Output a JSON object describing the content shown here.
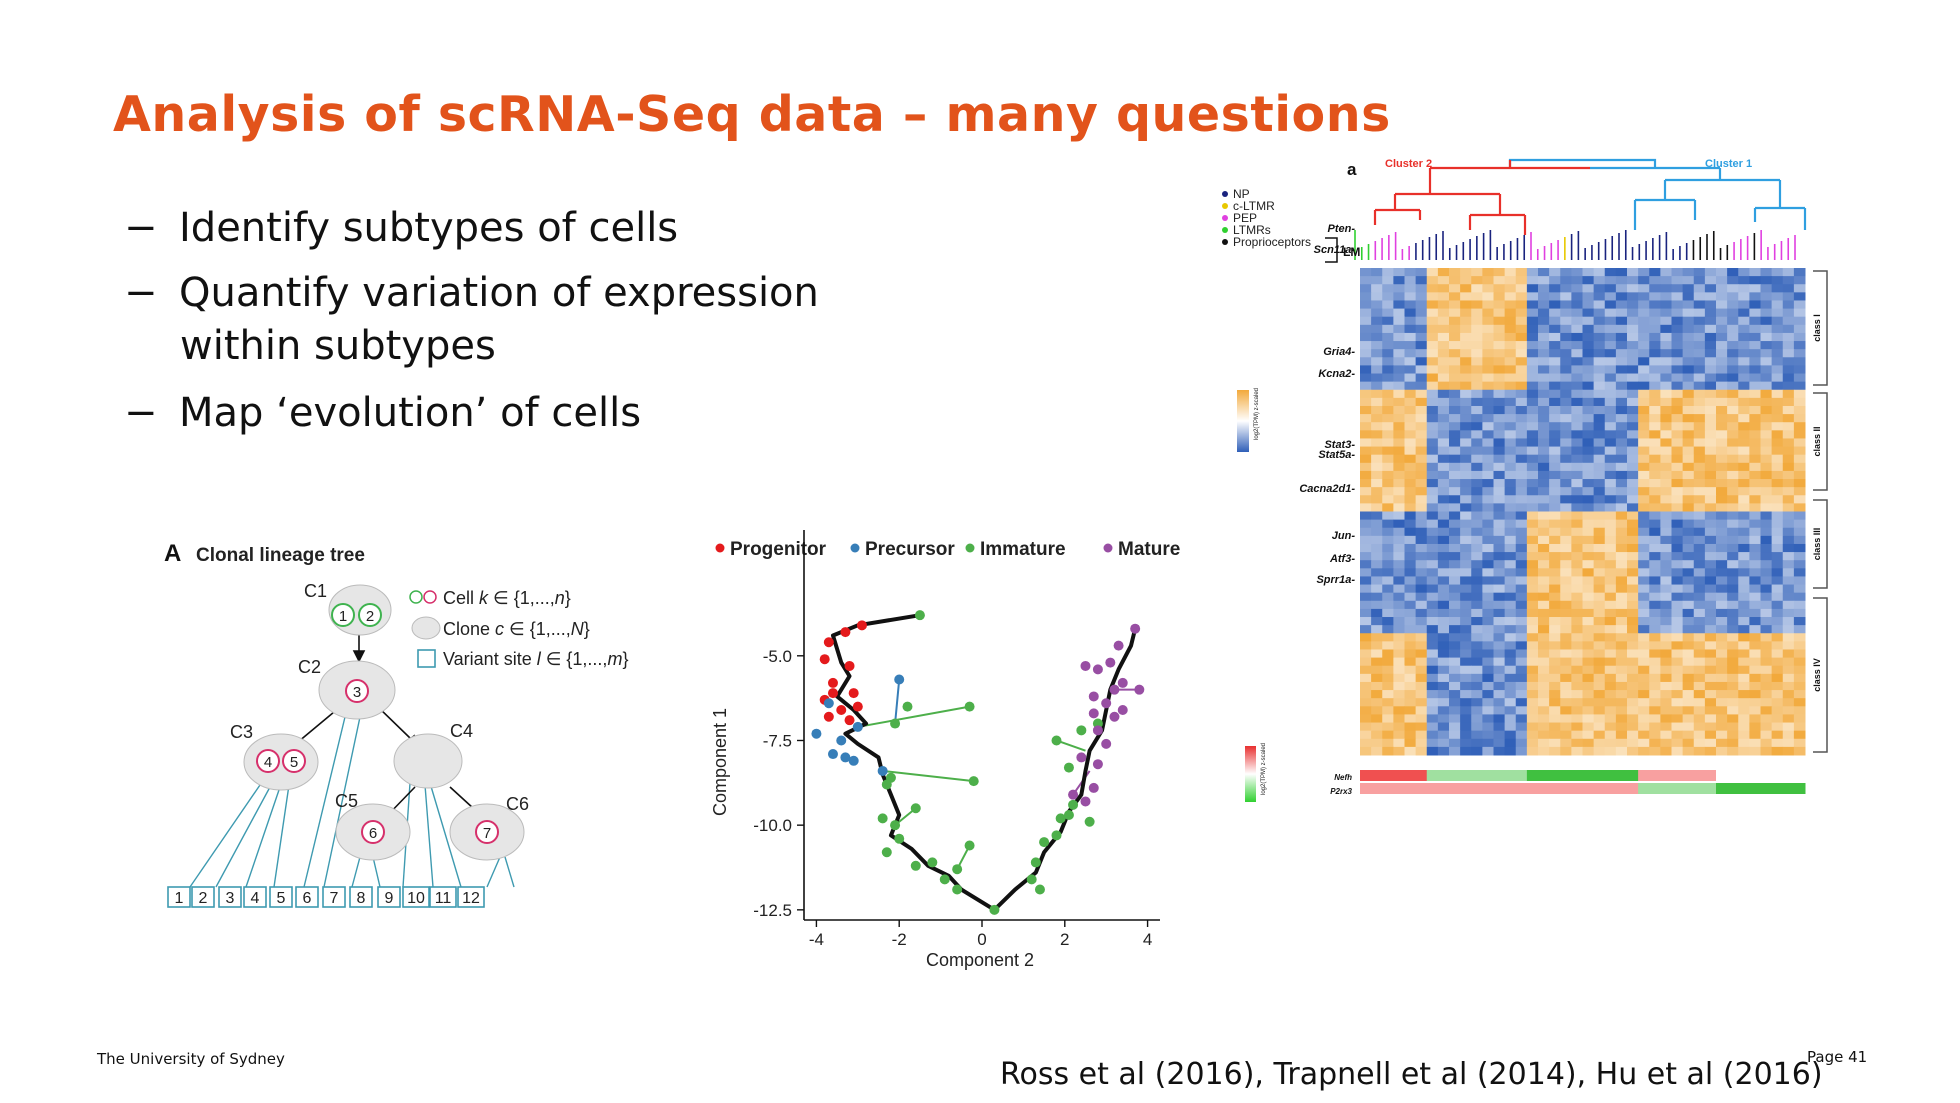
{
  "slide": {
    "title": "Analysis of scRNA-Seq data – many questions",
    "bullets": [
      {
        "dash": "−",
        "lines": [
          "Identify subtypes of cells"
        ]
      },
      {
        "dash": "−",
        "lines": [
          "Quantify variation of expression",
          "within subtypes"
        ]
      },
      {
        "dash": "−",
        "lines": [
          "Map ‘evolution’ of cells"
        ]
      }
    ],
    "footer_left": "The University of Sydney",
    "footer_right": "Page 41",
    "citation": "Ross et al (2016), Trapnell et al (2014), Hu et al (2016)"
  },
  "lineage_tree": {
    "panel_letter": "A",
    "title": "Clonal lineage tree",
    "clones": [
      "C1",
      "C2",
      "C3",
      "C4",
      "C5",
      "C6"
    ],
    "cells": [
      "1",
      "2",
      "3",
      "4",
      "5",
      "6",
      "7"
    ],
    "legend": [
      {
        "prefix": "Cell ",
        "var": "k",
        "suffix": " ∈ {1,...,",
        "var2": "n",
        "end": "}"
      },
      {
        "prefix": "Clone ",
        "var": "c",
        "suffix": " ∈ {1,...,",
        "var2": "N",
        "end": "}"
      },
      {
        "prefix": "Variant site ",
        "var": "l",
        "suffix": " ∈ {1,...,",
        "var2": "m",
        "end": "}"
      }
    ],
    "sites": [
      "1",
      "2",
      "3",
      "4",
      "5",
      "6",
      "7",
      "8",
      "9",
      "10",
      "11",
      "12"
    ],
    "colors": {
      "cell": "#D6306B",
      "cell_alt": "#3FB34F",
      "clone_fill": "#E6E6E6",
      "site": "#3E9AB0"
    }
  },
  "chart_data": {
    "type": "scatter",
    "xlabel": "Component 2",
    "ylabel": "Component 1",
    "xlim": [
      -4.3,
      4.3
    ],
    "ylim": [
      -12.8,
      -3.5
    ],
    "xticks": [
      -4,
      -2,
      0,
      2,
      4
    ],
    "yticks": [
      -5.0,
      -7.5,
      -10.0,
      -12.5
    ],
    "xtick_labels": [
      "-4",
      "-2",
      "0",
      "2",
      "4"
    ],
    "ytick_labels": [
      "-5.0",
      "-7.5",
      "-10.0",
      "-12.5"
    ],
    "legend_position": "top",
    "trajectory": [
      [
        -1.5,
        -3.8
      ],
      [
        -3.0,
        -4.1
      ],
      [
        -3.6,
        -4.4
      ],
      [
        -3.4,
        -5.2
      ],
      [
        -3.2,
        -5.6
      ],
      [
        -3.5,
        -6.2
      ],
      [
        -3.1,
        -6.6
      ],
      [
        -2.8,
        -7.0
      ],
      [
        -3.3,
        -7.3
      ],
      [
        -3.0,
        -7.6
      ],
      [
        -2.5,
        -8.0
      ],
      [
        -2.4,
        -8.5
      ],
      [
        -2.2,
        -9.1
      ],
      [
        -2.0,
        -9.7
      ],
      [
        -2.2,
        -10.3
      ],
      [
        -1.7,
        -10.7
      ],
      [
        -1.3,
        -11.2
      ],
      [
        -0.8,
        -11.5
      ],
      [
        -0.5,
        -11.9
      ],
      [
        0.3,
        -12.5
      ],
      [
        0.8,
        -11.9
      ],
      [
        1.3,
        -11.4
      ],
      [
        1.5,
        -10.8
      ],
      [
        1.9,
        -10.2
      ],
      [
        2.1,
        -9.6
      ],
      [
        2.4,
        -9.1
      ],
      [
        2.5,
        -8.4
      ],
      [
        2.6,
        -7.8
      ],
      [
        2.9,
        -7.2
      ],
      [
        3.0,
        -6.6
      ],
      [
        3.1,
        -6.0
      ],
      [
        3.3,
        -5.4
      ],
      [
        3.6,
        -4.7
      ],
      [
        3.7,
        -4.2
      ]
    ],
    "series": [
      {
        "name": "Progenitor",
        "color": "#E41A1C",
        "points": [
          [
            -3.7,
            -4.6
          ],
          [
            -3.3,
            -4.3
          ],
          [
            -2.9,
            -4.1
          ],
          [
            -3.8,
            -5.1
          ],
          [
            -3.2,
            -5.3
          ],
          [
            -3.6,
            -5.8
          ],
          [
            -3.1,
            -6.1
          ],
          [
            -3.8,
            -6.3
          ],
          [
            -3.4,
            -6.6
          ],
          [
            -3.2,
            -6.9
          ],
          [
            -3.7,
            -6.8
          ],
          [
            -3.6,
            -6.1
          ],
          [
            -3.0,
            -6.5
          ]
        ]
      },
      {
        "name": "Precursor",
        "color": "#377EB8",
        "points": [
          [
            -4.0,
            -7.3
          ],
          [
            -3.7,
            -6.4
          ],
          [
            -3.4,
            -7.5
          ],
          [
            -3.3,
            -8.0
          ],
          [
            -3.1,
            -8.1
          ],
          [
            -2.4,
            -8.4
          ],
          [
            -2.0,
            -5.7
          ],
          [
            -3.0,
            -7.1
          ],
          [
            -3.6,
            -7.9
          ]
        ]
      },
      {
        "name": "Immature",
        "color": "#4DAF4A",
        "points": [
          [
            -1.5,
            -3.8
          ],
          [
            -1.8,
            -6.5
          ],
          [
            -2.1,
            -7.0
          ],
          [
            -0.3,
            -6.5
          ],
          [
            -0.2,
            -8.7
          ],
          [
            -2.2,
            -8.6
          ],
          [
            -2.3,
            -8.8
          ],
          [
            -1.6,
            -9.5
          ],
          [
            -2.4,
            -9.8
          ],
          [
            -2.1,
            -10.0
          ],
          [
            -2.0,
            -10.4
          ],
          [
            -2.3,
            -10.8
          ],
          [
            -1.6,
            -11.2
          ],
          [
            -1.2,
            -11.1
          ],
          [
            -0.9,
            -11.6
          ],
          [
            -0.6,
            -11.9
          ],
          [
            -0.6,
            -11.3
          ],
          [
            -0.3,
            -10.6
          ],
          [
            0.3,
            -12.5
          ],
          [
            1.2,
            -11.6
          ],
          [
            1.4,
            -11.9
          ],
          [
            1.3,
            -11.1
          ],
          [
            1.5,
            -10.5
          ],
          [
            1.8,
            -10.3
          ],
          [
            1.9,
            -9.8
          ],
          [
            2.1,
            -9.7
          ],
          [
            2.2,
            -9.4
          ],
          [
            2.6,
            -9.9
          ],
          [
            2.1,
            -8.3
          ],
          [
            2.4,
            -7.2
          ],
          [
            2.8,
            -7.0
          ],
          [
            1.8,
            -7.5
          ]
        ]
      },
      {
        "name": "Mature",
        "color": "#984EA3",
        "points": [
          [
            3.7,
            -4.2
          ],
          [
            3.3,
            -4.7
          ],
          [
            3.1,
            -5.2
          ],
          [
            2.5,
            -5.3
          ],
          [
            2.8,
            -5.4
          ],
          [
            3.4,
            -5.8
          ],
          [
            3.8,
            -6.0
          ],
          [
            2.7,
            -6.2
          ],
          [
            3.0,
            -6.4
          ],
          [
            2.7,
            -6.7
          ],
          [
            3.4,
            -6.6
          ],
          [
            3.2,
            -6.8
          ],
          [
            2.8,
            -7.2
          ],
          [
            3.0,
            -7.6
          ],
          [
            2.8,
            -8.2
          ],
          [
            2.4,
            -8.0
          ],
          [
            2.2,
            -9.1
          ],
          [
            2.5,
            -9.3
          ],
          [
            2.7,
            -8.9
          ],
          [
            3.2,
            -6.0
          ]
        ]
      }
    ],
    "branches": [
      {
        "from": [
          -2.0,
          -5.7
        ],
        "to": [
          -2.1,
          -7.0
        ],
        "color": "#377EB8"
      },
      {
        "from": [
          -3.0,
          -7.1
        ],
        "to": [
          -0.3,
          -6.5
        ],
        "color": "#4DAF4A"
      },
      {
        "from": [
          -2.4,
          -8.4
        ],
        "to": [
          -0.2,
          -8.7
        ],
        "color": "#4DAF4A"
      },
      {
        "from": [
          -2.1,
          -10.0
        ],
        "to": [
          -1.6,
          -9.5
        ],
        "color": "#4DAF4A"
      },
      {
        "from": [
          -0.6,
          -11.3
        ],
        "to": [
          -0.3,
          -10.6
        ],
        "color": "#4DAF4A"
      },
      {
        "from": [
          2.5,
          -7.8
        ],
        "to": [
          1.8,
          -7.5
        ],
        "color": "#4DAF4A"
      },
      {
        "from": [
          2.6,
          -8.4
        ],
        "to": [
          2.2,
          -9.1
        ],
        "color": "#984EA3"
      },
      {
        "from": [
          3.1,
          -6.0
        ],
        "to": [
          3.8,
          -6.0
        ],
        "color": "#984EA3"
      }
    ]
  },
  "heatmap": {
    "panel_letter": "a",
    "cluster_labels": [
      {
        "text": "Cluster 2",
        "color": "#E8302A"
      },
      {
        "text": "Cluster 1",
        "color": "#2F9FE0"
      }
    ],
    "legend": [
      {
        "label": "NP",
        "color": "#1A237E"
      },
      {
        "label": "c-LTMR",
        "color": "#E8C800"
      },
      {
        "label": "PEP",
        "color": "#E040E0"
      },
      {
        "label": "LTMRs",
        "color": "#30D030"
      },
      {
        "label": "Proprioceptors",
        "color": "#111111"
      }
    ],
    "lm_label": "LM",
    "genes": [
      "Pten-",
      "Scn11a-",
      "Gria4-",
      "Kcna2-",
      "Stat3-",
      "Stat5a-",
      "Cacna2d1-",
      "Jun-",
      "Atf3-",
      "Sprr1a-"
    ],
    "classes": [
      "class I",
      "class II",
      "class III",
      "class IV"
    ],
    "scale_label": "log2(TPM) z-scaled",
    "bottom_genes": [
      "Nefh",
      "P2rx3"
    ],
    "colors": {
      "high": "#F2A93B",
      "mid": "#FFFFFF",
      "low": "#2F5FB8"
    }
  }
}
